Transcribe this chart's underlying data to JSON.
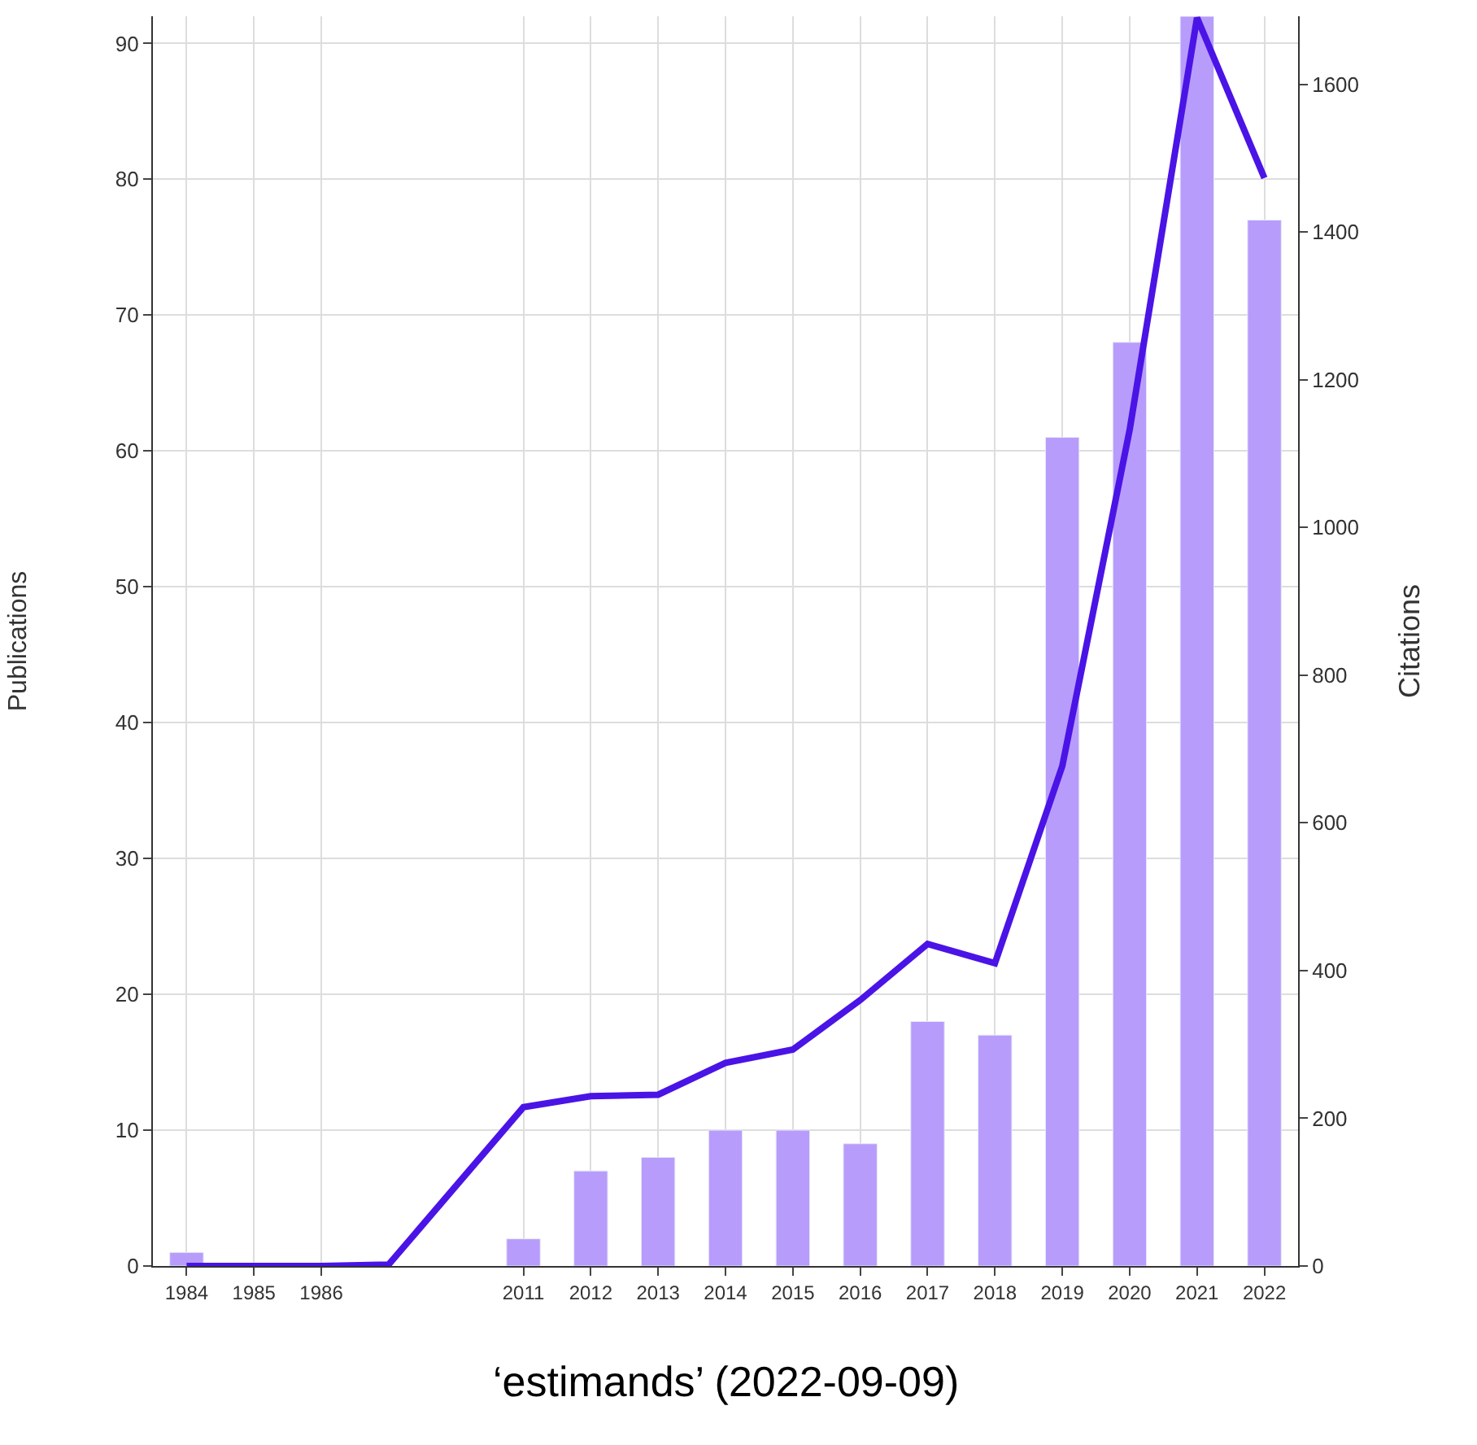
{
  "chart_data": {
    "type": "bar",
    "categories": [
      "1984",
      "1985",
      "1986",
      null,
      null,
      "2011",
      "2012",
      "2013",
      "2014",
      "2015",
      "2016",
      "2017",
      "2018",
      "2019",
      "2020",
      "2021",
      "2022"
    ],
    "series": [
      {
        "color": "#b89cfc",
        "values": [
          1,
          null,
          null,
          null,
          null,
          2,
          7,
          8,
          10,
          10,
          9,
          18,
          17,
          61,
          68,
          92,
          77
        ]
      },
      {
        "type": "line",
        "axis": "y2",
        "color": "#4a14e6",
        "values": [
          0,
          0,
          0,
          2,
          null,
          215,
          230,
          232,
          275,
          293,
          360,
          436,
          410,
          677,
          1132,
          1690,
          1473
        ]
      }
    ],
    "ylabel": "Publications",
    "y2label": "Citations",
    "ylim": [
      0,
      92
    ],
    "yticks": [
      0,
      10,
      20,
      30,
      40,
      50,
      60,
      70,
      80,
      90
    ],
    "y2lim": [
      0,
      1692
    ],
    "y2ticks": [
      0,
      200,
      400,
      600,
      800,
      1000,
      1200,
      1400,
      1600
    ],
    "grid": true,
    "marker": "none",
    "line_style": "solid",
    "annotations": [
      "‘estimands’ (2022-09-09)"
    ]
  }
}
